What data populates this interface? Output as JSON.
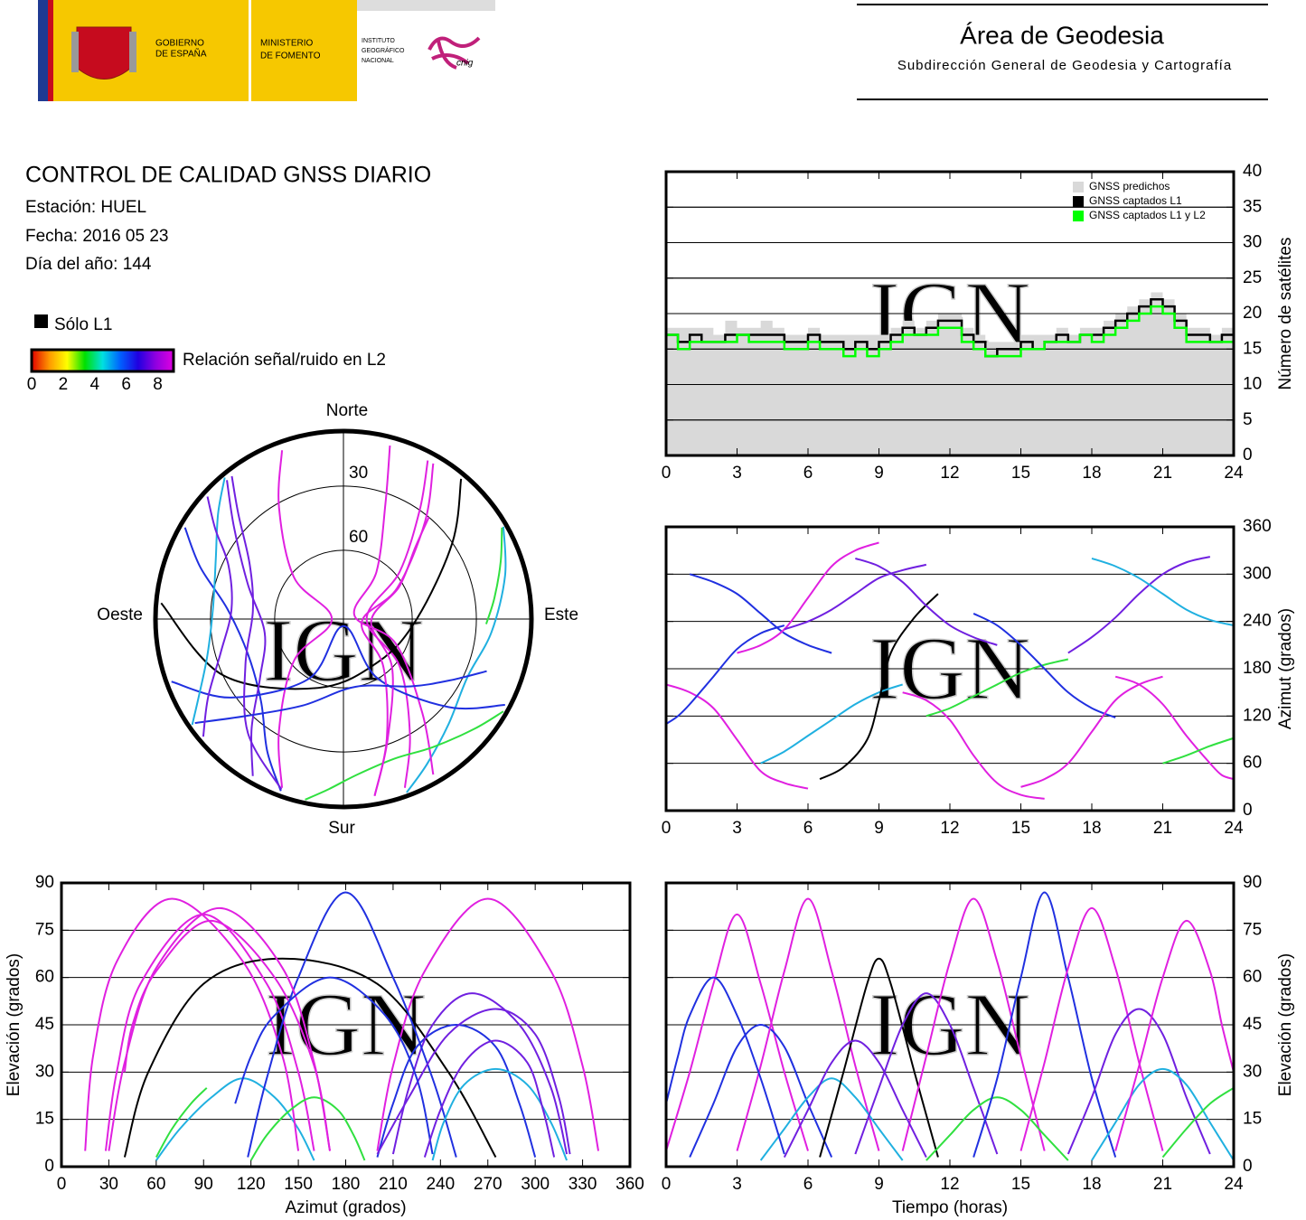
{
  "header": {
    "gobierno": [
      "GOBIERNO",
      "DE ESPAÑA"
    ],
    "ministerio": [
      "MINISTERIO",
      "DE FOMENTO"
    ],
    "instituto": [
      "INSTITUTO",
      "GEOGRÁFICO",
      "NACIONAL"
    ],
    "cnig": "cnig",
    "area": "Área de Geodesia",
    "subdireccion": "Subdirección General de Geodesia y Cartografía"
  },
  "info": {
    "title": "CONTROL DE CALIDAD GNSS DIARIO",
    "station": "Estación: HUEL",
    "date": "Fecha: 2016 05 23",
    "doy": "Día del año: 144"
  },
  "legend": {
    "l1_only": "Sólo L1",
    "l1_only_color": "#000000",
    "snr_label": "Relación señal/ruido en L2",
    "snr_lim": [
      0,
      9
    ],
    "snr_ticks": [
      0,
      2,
      4,
      6,
      8
    ],
    "snr_colors": [
      "#e00000",
      "#ff9900",
      "#ffff00",
      "#00e000",
      "#00e0e0",
      "#0060ff",
      "#2000e0",
      "#9000e0",
      "#e000e0"
    ]
  },
  "watermark": "IGN",
  "chart_data": [
    {
      "type": "step",
      "x": [
        0,
        0.5,
        1,
        1.5,
        2,
        2.5,
        3,
        3.5,
        4,
        4.5,
        5,
        5.5,
        6,
        6.5,
        7,
        7.5,
        8,
        8.5,
        9,
        9.5,
        10,
        10.5,
        11,
        11.5,
        12,
        12.5,
        13,
        13.5,
        14,
        14.5,
        15,
        15.5,
        16,
        16.5,
        17,
        17.5,
        18,
        18.5,
        19,
        19.5,
        20,
        20.5,
        21,
        21.5,
        22,
        22.5,
        23,
        23.5,
        24
      ],
      "xlim": [
        0,
        24
      ],
      "xticks": [
        0,
        3,
        6,
        9,
        12,
        15,
        18,
        21,
        24
      ],
      "ylim": [
        0,
        40
      ],
      "yticks": [
        0,
        5,
        10,
        15,
        20,
        25,
        30,
        35,
        40
      ],
      "ylabel": "Número de satélites",
      "grid": true,
      "legend": "upper right",
      "series": [
        {
          "name": "GNSS predichos",
          "color": "#d9d9d9",
          "values": [
            18,
            18,
            18,
            18,
            17,
            19,
            18,
            18,
            19,
            18,
            17,
            17,
            18,
            17,
            17,
            17,
            17,
            17,
            17,
            18,
            19,
            18,
            19,
            20,
            20,
            18,
            17,
            16,
            16,
            16,
            17,
            17,
            17,
            18,
            17,
            18,
            18,
            19,
            20,
            21,
            22,
            23,
            22,
            20,
            18,
            18,
            17,
            18,
            18
          ]
        },
        {
          "name": "GNSS captados L1",
          "color": "#000000",
          "values": [
            17,
            16,
            17,
            16,
            16,
            17,
            17,
            17,
            17,
            17,
            16,
            16,
            17,
            16,
            16,
            15,
            16,
            15,
            16,
            17,
            18,
            17,
            18,
            19,
            19,
            17,
            16,
            14,
            15,
            15,
            16,
            15,
            16,
            17,
            16,
            17,
            17,
            18,
            19,
            20,
            21,
            22,
            21,
            19,
            17,
            17,
            16,
            17,
            18
          ]
        },
        {
          "name": "GNSS captados L1 y L2",
          "color": "#00ff00",
          "values": [
            17,
            15,
            16,
            16,
            16,
            16,
            17,
            16,
            16,
            16,
            15,
            15,
            16,
            15,
            15,
            14,
            15,
            14,
            15,
            16,
            17,
            17,
            17,
            18,
            18,
            16,
            15,
            14,
            14,
            14,
            15,
            15,
            16,
            16,
            16,
            17,
            16,
            17,
            18,
            19,
            20,
            21,
            20,
            18,
            16,
            16,
            16,
            16,
            17
          ]
        }
      ]
    },
    {
      "type": "polar",
      "directions": {
        "north": "Norte",
        "south": "Sur",
        "east": "Este",
        "west": "Oeste"
      },
      "rings": [
        30,
        60
      ],
      "series": [
        {
          "color": "#e020e0",
          "time": [
            0,
            1,
            2,
            3,
            4,
            5,
            6
          ],
          "azimuth": [
            160,
            150,
            130,
            90,
            50,
            35,
            28
          ],
          "elevation": [
            5,
            30,
            58,
            80,
            58,
            30,
            5
          ]
        },
        {
          "color": "#2030e0",
          "time": [
            1,
            2,
            3,
            4,
            5,
            6,
            7
          ],
          "azimuth": [
            300,
            290,
            275,
            250,
            225,
            210,
            200
          ],
          "elevation": [
            3,
            20,
            38,
            45,
            38,
            20,
            3
          ]
        },
        {
          "color": "#e020e0",
          "time": [
            3,
            4,
            5,
            6,
            7,
            8,
            9
          ],
          "azimuth": [
            200,
            210,
            230,
            270,
            310,
            330,
            340
          ],
          "elevation": [
            5,
            32,
            62,
            85,
            62,
            32,
            5
          ]
        },
        {
          "color": "#20b0e0",
          "time": [
            4,
            5,
            6,
            7,
            8,
            9,
            10
          ],
          "azimuth": [
            60,
            75,
            95,
            115,
            135,
            150,
            160
          ],
          "elevation": [
            2,
            12,
            22,
            28,
            22,
            12,
            2
          ]
        },
        {
          "color": "#000000",
          "time": [
            6.5,
            7.5,
            8.5,
            9,
            9.5,
            10.5,
            11.5
          ],
          "azimuth": [
            40,
            55,
            90,
            140,
            200,
            245,
            275
          ],
          "elevation": [
            3,
            30,
            58,
            66,
            58,
            30,
            3
          ]
        },
        {
          "color": "#7020e0",
          "time": [
            8,
            9,
            10,
            11,
            12,
            13,
            14
          ],
          "azimuth": [
            320,
            310,
            290,
            260,
            235,
            220,
            210
          ],
          "elevation": [
            4,
            25,
            45,
            55,
            45,
            25,
            4
          ]
        },
        {
          "color": "#e020e0",
          "time": [
            10,
            11,
            12,
            13,
            14,
            15,
            16
          ],
          "azimuth": [
            150,
            140,
            115,
            70,
            35,
            20,
            15
          ],
          "elevation": [
            5,
            35,
            65,
            85,
            65,
            35,
            5
          ]
        },
        {
          "color": "#30e040",
          "time": [
            11,
            12,
            13,
            14,
            15,
            16,
            17
          ],
          "azimuth": [
            120,
            130,
            145,
            160,
            175,
            185,
            192
          ],
          "elevation": [
            2,
            10,
            18,
            22,
            18,
            10,
            2
          ]
        },
        {
          "color": "#2030e0",
          "time": [
            13,
            14,
            15,
            16,
            17,
            18,
            19
          ],
          "azimuth": [
            250,
            235,
            210,
            180,
            150,
            130,
            118
          ],
          "elevation": [
            3,
            28,
            60,
            87,
            60,
            28,
            3
          ]
        },
        {
          "color": "#e020e0",
          "time": [
            15,
            16,
            17,
            18,
            19,
            20,
            21
          ],
          "azimuth": [
            30,
            40,
            60,
            100,
            140,
            160,
            170
          ],
          "elevation": [
            5,
            33,
            63,
            82,
            63,
            33,
            5
          ]
        },
        {
          "color": "#7020e0",
          "time": [
            17,
            18,
            19,
            20,
            21,
            22,
            23
          ],
          "azimuth": [
            200,
            220,
            245,
            275,
            300,
            315,
            322
          ],
          "elevation": [
            4,
            22,
            42,
            50,
            42,
            22,
            4
          ]
        },
        {
          "color": "#20b0e0",
          "time": [
            18,
            19,
            20,
            21,
            22,
            23,
            24
          ],
          "azimuth": [
            320,
            310,
            295,
            275,
            255,
            242,
            235
          ],
          "elevation": [
            2,
            14,
            26,
            31,
            26,
            14,
            2
          ]
        },
        {
          "color": "#e020e0",
          "time": [
            19,
            20,
            21,
            22,
            23,
            23.5,
            24
          ],
          "azimuth": [
            170,
            160,
            135,
            95,
            60,
            45,
            40
          ],
          "elevation": [
            5,
            32,
            60,
            78,
            62,
            45,
            30
          ]
        },
        {
          "color": "#2030e0",
          "time": [
            0,
            0.5,
            1,
            2,
            3,
            4,
            5
          ],
          "azimuth": [
            110,
            120,
            135,
            170,
            205,
            225,
            235
          ],
          "elevation": [
            20,
            35,
            48,
            60,
            48,
            28,
            4
          ]
        },
        {
          "color": "#7020e0",
          "time": [
            5,
            6,
            7,
            8,
            9,
            10,
            11
          ],
          "azimuth": [
            230,
            240,
            255,
            275,
            295,
            305,
            312
          ],
          "elevation": [
            3,
            18,
            33,
            40,
            33,
            18,
            3
          ]
        },
        {
          "color": "#30e040",
          "time": [
            21,
            22,
            23,
            24
          ],
          "azimuth": [
            60,
            70,
            82,
            92
          ],
          "elevation": [
            3,
            12,
            20,
            25
          ]
        }
      ]
    },
    {
      "type": "track",
      "xlim": [
        0,
        24
      ],
      "xticks": [
        0,
        3,
        6,
        9,
        12,
        15,
        18,
        21,
        24
      ],
      "ylim": [
        0,
        360
      ],
      "yticks": [
        0,
        60,
        120,
        180,
        240,
        300,
        360
      ],
      "ylabel": "Azimut (grados)",
      "grid": true
    },
    {
      "type": "track",
      "xlim": [
        0,
        360
      ],
      "xticks": [
        0,
        30,
        60,
        90,
        120,
        150,
        180,
        210,
        240,
        270,
        300,
        330,
        360
      ],
      "ylim": [
        0,
        90
      ],
      "yticks": [
        0,
        15,
        30,
        45,
        60,
        75,
        90
      ],
      "xlabel": "Azimut (grados)",
      "ylabel": "Elevación (grados)",
      "grid": true
    },
    {
      "type": "track",
      "xlim": [
        0,
        24
      ],
      "xticks": [
        0,
        3,
        6,
        9,
        12,
        15,
        18,
        21,
        24
      ],
      "ylim": [
        0,
        90
      ],
      "yticks": [
        0,
        15,
        30,
        45,
        60,
        75,
        90
      ],
      "xlabel": "Tiempo (horas)",
      "ylabel": "Elevación (grados)",
      "grid": true
    }
  ]
}
